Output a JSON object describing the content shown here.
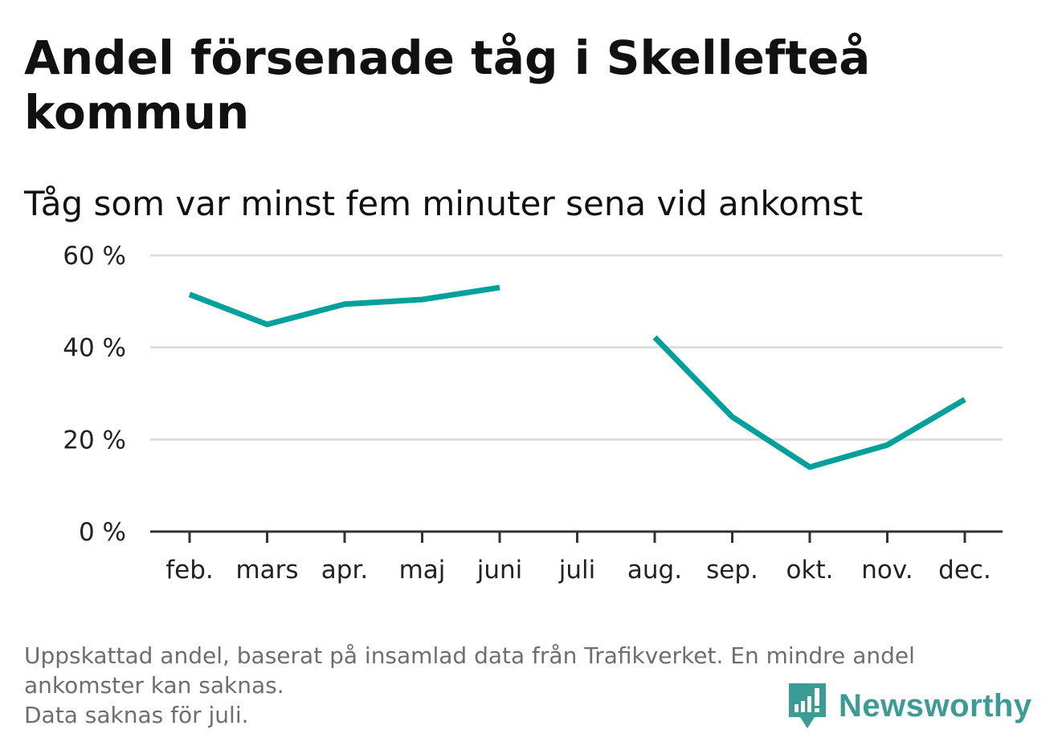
{
  "title": "Andel försenade tåg i Skellefteå kommun",
  "subtitle": "Tåg som var minst fem minuter sena vid ankomst",
  "footnote": {
    "line1": "Uppskattad andel, baserat på insamlad data från Trafikverket. En mindre andel",
    "line2": "ankomster kan saknas.",
    "line3": "Data saknas för juli."
  },
  "logo": {
    "text": "Newsworthy",
    "color": "#3b9c96"
  },
  "chart_data": {
    "type": "line",
    "title": "Andel försenade tåg i Skellefteå kommun",
    "subtitle": "Tåg som var minst fem minuter sena vid ankomst",
    "xlabel": "",
    "ylabel": "",
    "categories": [
      "feb.",
      "mars",
      "apr.",
      "maj",
      "juni",
      "juli",
      "aug.",
      "sep.",
      "okt.",
      "nov.",
      "dec."
    ],
    "series": [
      {
        "name": "Andel försenade tåg",
        "values": [
          51.5,
          45,
          49.4,
          50.4,
          53,
          null,
          42.2,
          24.9,
          14,
          18.8,
          28.7
        ],
        "color": "#00a19a"
      }
    ],
    "ylim": [
      0,
      60
    ],
    "yticks": [
      0,
      20,
      40,
      60
    ],
    "ytick_labels": [
      "0 %",
      "20 %",
      "40 %",
      "60 %"
    ],
    "grid": true,
    "legend": "none"
  }
}
